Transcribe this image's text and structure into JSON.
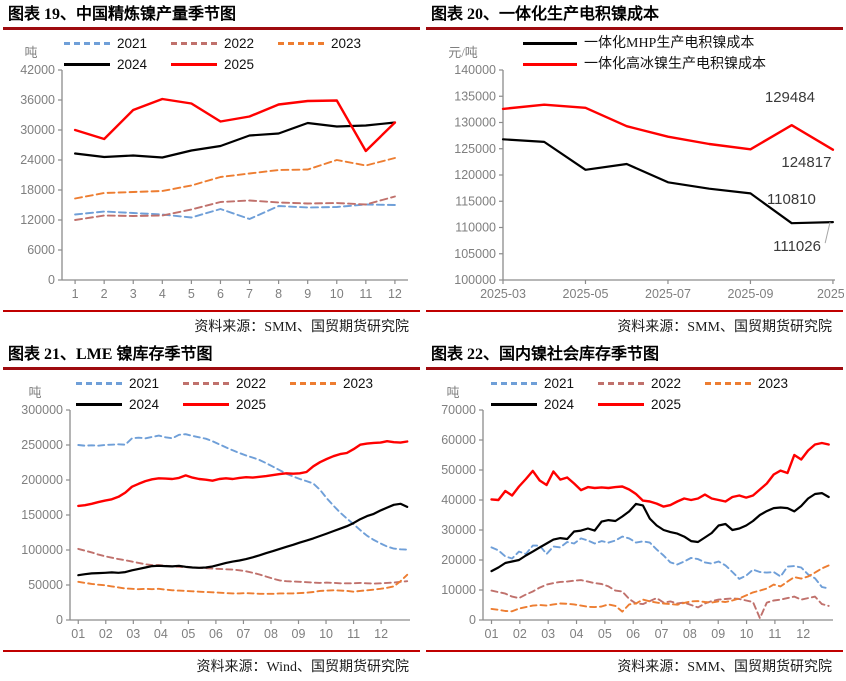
{
  "chart_data": [
    {
      "type": "line",
      "title": "图表 19、中国精炼镍产量季节图",
      "unit": "吨",
      "source": "资料来源：SMM、国贸期货研究院",
      "ylim": [
        0,
        42000
      ],
      "y_ticks": [
        0,
        6000,
        12000,
        18000,
        24000,
        30000,
        36000,
        42000
      ],
      "x_tick_vals": [
        1,
        2,
        3,
        4,
        5,
        6,
        7,
        8,
        9,
        10,
        11,
        12
      ],
      "x_tick_labels": [
        "1",
        "2",
        "3",
        "4",
        "5",
        "6",
        "7",
        "8",
        "9",
        "10",
        "11",
        "12"
      ],
      "xlim": [
        0.55,
        12.45
      ],
      "grid": false,
      "legend_position": "top",
      "series": [
        {
          "name": "2021",
          "color": "#6f9fd8",
          "style": "dashed",
          "x_start": 1,
          "x_end": 12,
          "values": [
            13100,
            13700,
            13400,
            13100,
            12500,
            14200,
            12200,
            14800,
            14500,
            14600,
            15100,
            15000
          ]
        },
        {
          "name": "2022",
          "color": "#c0716c",
          "style": "dashed",
          "x_start": 1,
          "x_end": 12,
          "values": [
            12000,
            12900,
            12800,
            12900,
            14100,
            15600,
            15900,
            15500,
            15300,
            15400,
            15100,
            16700
          ]
        },
        {
          "name": "2023",
          "color": "#ed7d31",
          "style": "dashed",
          "x_start": 1,
          "x_end": 12,
          "values": [
            16300,
            17400,
            17600,
            17800,
            18900,
            20600,
            21300,
            22000,
            22100,
            24000,
            22900,
            24400
          ]
        },
        {
          "name": "2024",
          "color": "#000000",
          "style": "solid",
          "x_start": 1,
          "x_end": 12,
          "values": [
            25300,
            24600,
            24900,
            24500,
            25900,
            26800,
            28900,
            29300,
            31400,
            30700,
            30900,
            31500
          ]
        },
        {
          "name": "2025",
          "color": "#ff0000",
          "style": "solid",
          "x_start": 1,
          "x_end": 12,
          "values": [
            30000,
            28200,
            34000,
            36200,
            35300,
            31700,
            32700,
            35100,
            35800,
            35900,
            25800,
            31500
          ]
        }
      ],
      "annotations": []
    },
    {
      "type": "line",
      "title": "图表 20、一体化生产电积镍成本",
      "unit": "元/吨",
      "source": "资料来源：SMM、国贸期货研究院",
      "ylim": [
        100000,
        140000
      ],
      "y_ticks": [
        100000,
        105000,
        110000,
        115000,
        120000,
        125000,
        130000,
        135000,
        140000
      ],
      "x_tick_vals": [
        3,
        5,
        7,
        9,
        11
      ],
      "x_tick_labels": [
        "2025-03",
        "2025-05",
        "2025-07",
        "2025-09",
        "2025-"
      ],
      "xlim": [
        3,
        11.05
      ],
      "grid": false,
      "legend_position": "top",
      "series": [
        {
          "name": "一体化MHP生产电积镍成本",
          "color": "#000000",
          "style": "solid",
          "x_start": 3,
          "x_end": 11,
          "values": [
            126800,
            126300,
            121000,
            122100,
            118600,
            117400,
            116500,
            110810,
            111026
          ]
        },
        {
          "name": "一体化高冰镍生产电积镍成本",
          "color": "#ff0000",
          "style": "solid",
          "x_start": 3,
          "x_end": 11,
          "values": [
            132600,
            133400,
            132800,
            129300,
            127300,
            125900,
            124900,
            129484,
            124817
          ]
        }
      ],
      "annotations": [
        {
          "text": "129484",
          "x": 9.35,
          "y": 133900
        },
        {
          "text": "124817",
          "x": 9.75,
          "y": 121500
        },
        {
          "text": "110810",
          "x": 9.4,
          "y": 114500
        },
        {
          "text": "111026",
          "x": 9.55,
          "y": 105500,
          "leader": {
            "x": 10.93,
            "y": 111026
          }
        }
      ]
    },
    {
      "type": "line",
      "title": "图表 21、LME 镍库存季节图",
      "unit": "吨",
      "source": "资料来源：Wind、国贸期货研究院",
      "ylim": [
        0,
        300000
      ],
      "y_ticks": [
        0,
        50000,
        100000,
        150000,
        200000,
        250000,
        300000
      ],
      "x_tick_vals": [
        1,
        2,
        3,
        4,
        5,
        6,
        7,
        8,
        9,
        10,
        11,
        12
      ],
      "x_tick_labels": [
        "01",
        "02",
        "03",
        "04",
        "05",
        "06",
        "07",
        "08",
        "09",
        "10",
        "11",
        "12"
      ],
      "xlim": [
        0.7,
        13.05
      ],
      "grid": false,
      "legend_position": "top",
      "series": [
        {
          "name": "2021",
          "color": "#6f9fd8",
          "style": "dashed",
          "x_start": 1,
          "x_end": 12.95,
          "values": [
            250000,
            249000,
            249500,
            249000,
            250000,
            250500,
            251000,
            250500,
            259500,
            260500,
            259500,
            261500,
            263500,
            261000,
            259500,
            264500,
            265500,
            263000,
            261000,
            259000,
            255500,
            251000,
            246500,
            242500,
            238500,
            235000,
            232000,
            228500,
            224000,
            219000,
            214000,
            209000,
            205000,
            201500,
            198500,
            195000,
            186000,
            174000,
            163500,
            153500,
            145000,
            137000,
            128500,
            120500,
            114500,
            109500,
            105000,
            102000,
            101000,
            100500
          ]
        },
        {
          "name": "2022",
          "color": "#c0716c",
          "style": "dashed",
          "x_start": 1,
          "x_end": 12.95,
          "values": [
            101500,
            99000,
            96500,
            93500,
            91000,
            89000,
            87000,
            85500,
            83500,
            81500,
            79500,
            78500,
            78500,
            77500,
            76500,
            76000,
            75500,
            75000,
            74500,
            74000,
            73500,
            73000,
            72500,
            72000,
            71000,
            69500,
            67500,
            65000,
            62000,
            59000,
            56500,
            55500,
            55000,
            54500,
            54000,
            53500,
            53000,
            53500,
            53000,
            52500,
            52500,
            52500,
            53000,
            52500,
            52000,
            52500,
            53000,
            53500,
            54500,
            55500
          ]
        },
        {
          "name": "2023",
          "color": "#ed7d31",
          "style": "dashed",
          "x_start": 1,
          "x_end": 12.95,
          "values": [
            54500,
            53000,
            51500,
            50500,
            49500,
            48000,
            46500,
            45000,
            44500,
            44000,
            44500,
            44000,
            44500,
            43500,
            42500,
            42000,
            41500,
            41000,
            40500,
            40000,
            39500,
            39000,
            38500,
            38000,
            38000,
            38500,
            38000,
            37500,
            37500,
            37500,
            38000,
            38000,
            38000,
            38500,
            39000,
            40000,
            41500,
            42000,
            42500,
            42000,
            41500,
            40500,
            41500,
            42500,
            43500,
            44500,
            46000,
            48000,
            55500,
            64500
          ]
        },
        {
          "name": "2024",
          "color": "#000000",
          "style": "solid",
          "x_start": 1,
          "x_end": 12.95,
          "values": [
            64000,
            65500,
            66500,
            67000,
            67500,
            68000,
            67500,
            68500,
            71000,
            73000,
            75000,
            77000,
            77500,
            77000,
            76500,
            77500,
            76000,
            75000,
            74500,
            75000,
            76500,
            79000,
            81500,
            83500,
            85000,
            87000,
            89500,
            92500,
            95500,
            98500,
            101500,
            104500,
            107500,
            110500,
            113500,
            116500,
            120000,
            123500,
            127000,
            130500,
            134000,
            138500,
            144000,
            148500,
            151500,
            156500,
            160500,
            164500,
            166000,
            161500
          ]
        },
        {
          "name": "2025",
          "color": "#ff0000",
          "style": "solid",
          "x_start": 1,
          "x_end": 12.95,
          "values": [
            163000,
            164000,
            166000,
            168500,
            170500,
            172500,
            176000,
            182000,
            190500,
            194500,
            198500,
            201000,
            202500,
            202000,
            201500,
            203000,
            206500,
            203500,
            201500,
            200500,
            199000,
            201500,
            202500,
            201500,
            203000,
            204000,
            203500,
            204500,
            205500,
            207000,
            208500,
            209500,
            209000,
            209500,
            211500,
            219500,
            225500,
            230000,
            234000,
            237000,
            238500,
            244000,
            250500,
            252000,
            253000,
            253500,
            255500,
            254000,
            253500,
            255000
          ]
        }
      ],
      "annotations": []
    },
    {
      "type": "line",
      "title": "图表 22、国内镍社会库存季节图",
      "unit": "吨",
      "source": "资料来源：SMM、国贸期货研究院",
      "ylim": [
        0,
        70000
      ],
      "y_ticks": [
        0,
        10000,
        20000,
        30000,
        40000,
        50000,
        60000,
        70000
      ],
      "x_tick_vals": [
        1,
        2,
        3,
        4,
        5,
        6,
        7,
        8,
        9,
        10,
        11,
        12
      ],
      "x_tick_labels": [
        "01",
        "02",
        "03",
        "04",
        "05",
        "06",
        "07",
        "08",
        "09",
        "10",
        "11",
        "12"
      ],
      "xlim": [
        0.7,
        13.05
      ],
      "grid": false,
      "legend_position": "top",
      "series": [
        {
          "name": "2021",
          "color": "#6f9fd8",
          "style": "dashed",
          "x_start": 1,
          "x_end": 12.9,
          "values": [
            24200,
            23200,
            21200,
            20500,
            22800,
            22000,
            24800,
            24800,
            22000,
            24500,
            24200,
            26000,
            25500,
            27200,
            26500,
            25500,
            26300,
            25800,
            26500,
            27800,
            27200,
            25800,
            26200,
            25800,
            23500,
            21500,
            19200,
            18500,
            19500,
            20700,
            20300,
            19200,
            18800,
            19500,
            18200,
            16000,
            13700,
            14800,
            16800,
            16000,
            15800,
            16000,
            14500,
            17800,
            18000,
            17500,
            15200,
            13900,
            11000,
            10500
          ]
        },
        {
          "name": "2022",
          "color": "#c0716c",
          "style": "dashed",
          "x_start": 1,
          "x_end": 12.9,
          "values": [
            9800,
            9300,
            8800,
            7800,
            7300,
            8500,
            9500,
            10800,
            11800,
            12300,
            12700,
            12800,
            13100,
            13300,
            12800,
            12300,
            12000,
            11200,
            9800,
            9500,
            7000,
            5500,
            5300,
            6300,
            7300,
            5800,
            6200,
            5500,
            5800,
            5000,
            4200,
            5500,
            6300,
            6800,
            7000,
            7200,
            7000,
            6500,
            6000,
            600,
            5800,
            6500,
            6800,
            7300,
            7800,
            6800,
            7300,
            7800,
            5300,
            4700
          ]
        },
        {
          "name": "2023",
          "color": "#ed7d31",
          "style": "dashed",
          "x_start": 1,
          "x_end": 12.9,
          "values": [
            3700,
            3400,
            3000,
            2900,
            3800,
            4300,
            4800,
            5000,
            4800,
            5200,
            5500,
            5400,
            5200,
            4800,
            4400,
            4300,
            4500,
            5200,
            4700,
            2800,
            5200,
            5500,
            6800,
            6200,
            5800,
            5500,
            5300,
            5100,
            5700,
            6200,
            6300,
            6000,
            5800,
            6200,
            6000,
            6500,
            7200,
            8200,
            9200,
            9800,
            10500,
            11800,
            11200,
            12800,
            14300,
            13800,
            14500,
            15800,
            17200,
            18200
          ]
        },
        {
          "name": "2024",
          "color": "#000000",
          "style": "solid",
          "x_start": 1,
          "x_end": 12.9,
          "values": [
            16300,
            17500,
            19000,
            19500,
            20000,
            21500,
            22800,
            24200,
            25500,
            26800,
            27300,
            27000,
            29500,
            29800,
            30500,
            29800,
            32800,
            33300,
            33000,
            34500,
            36200,
            38700,
            38200,
            33800,
            31500,
            30000,
            29300,
            28800,
            27800,
            26300,
            26000,
            27500,
            29000,
            31500,
            32000,
            30000,
            30500,
            31500,
            33000,
            35000,
            36300,
            37300,
            37500,
            37300,
            36200,
            38000,
            40500,
            42000,
            42300,
            41000
          ]
        },
        {
          "name": "2025",
          "color": "#ff0000",
          "style": "solid",
          "x_start": 1,
          "x_end": 12.9,
          "values": [
            40200,
            40000,
            43000,
            41500,
            44500,
            47000,
            49700,
            46500,
            45000,
            49500,
            46800,
            47500,
            45500,
            43300,
            44300,
            44000,
            44200,
            44000,
            44300,
            44500,
            43500,
            42000,
            39800,
            39500,
            38800,
            37800,
            38300,
            39500,
            40500,
            40000,
            40500,
            41800,
            40500,
            40000,
            39500,
            41000,
            41500,
            40800,
            41500,
            43500,
            45500,
            48500,
            49800,
            49000,
            55000,
            53500,
            56500,
            58500,
            59000,
            58500
          ]
        }
      ],
      "annotations": []
    }
  ]
}
